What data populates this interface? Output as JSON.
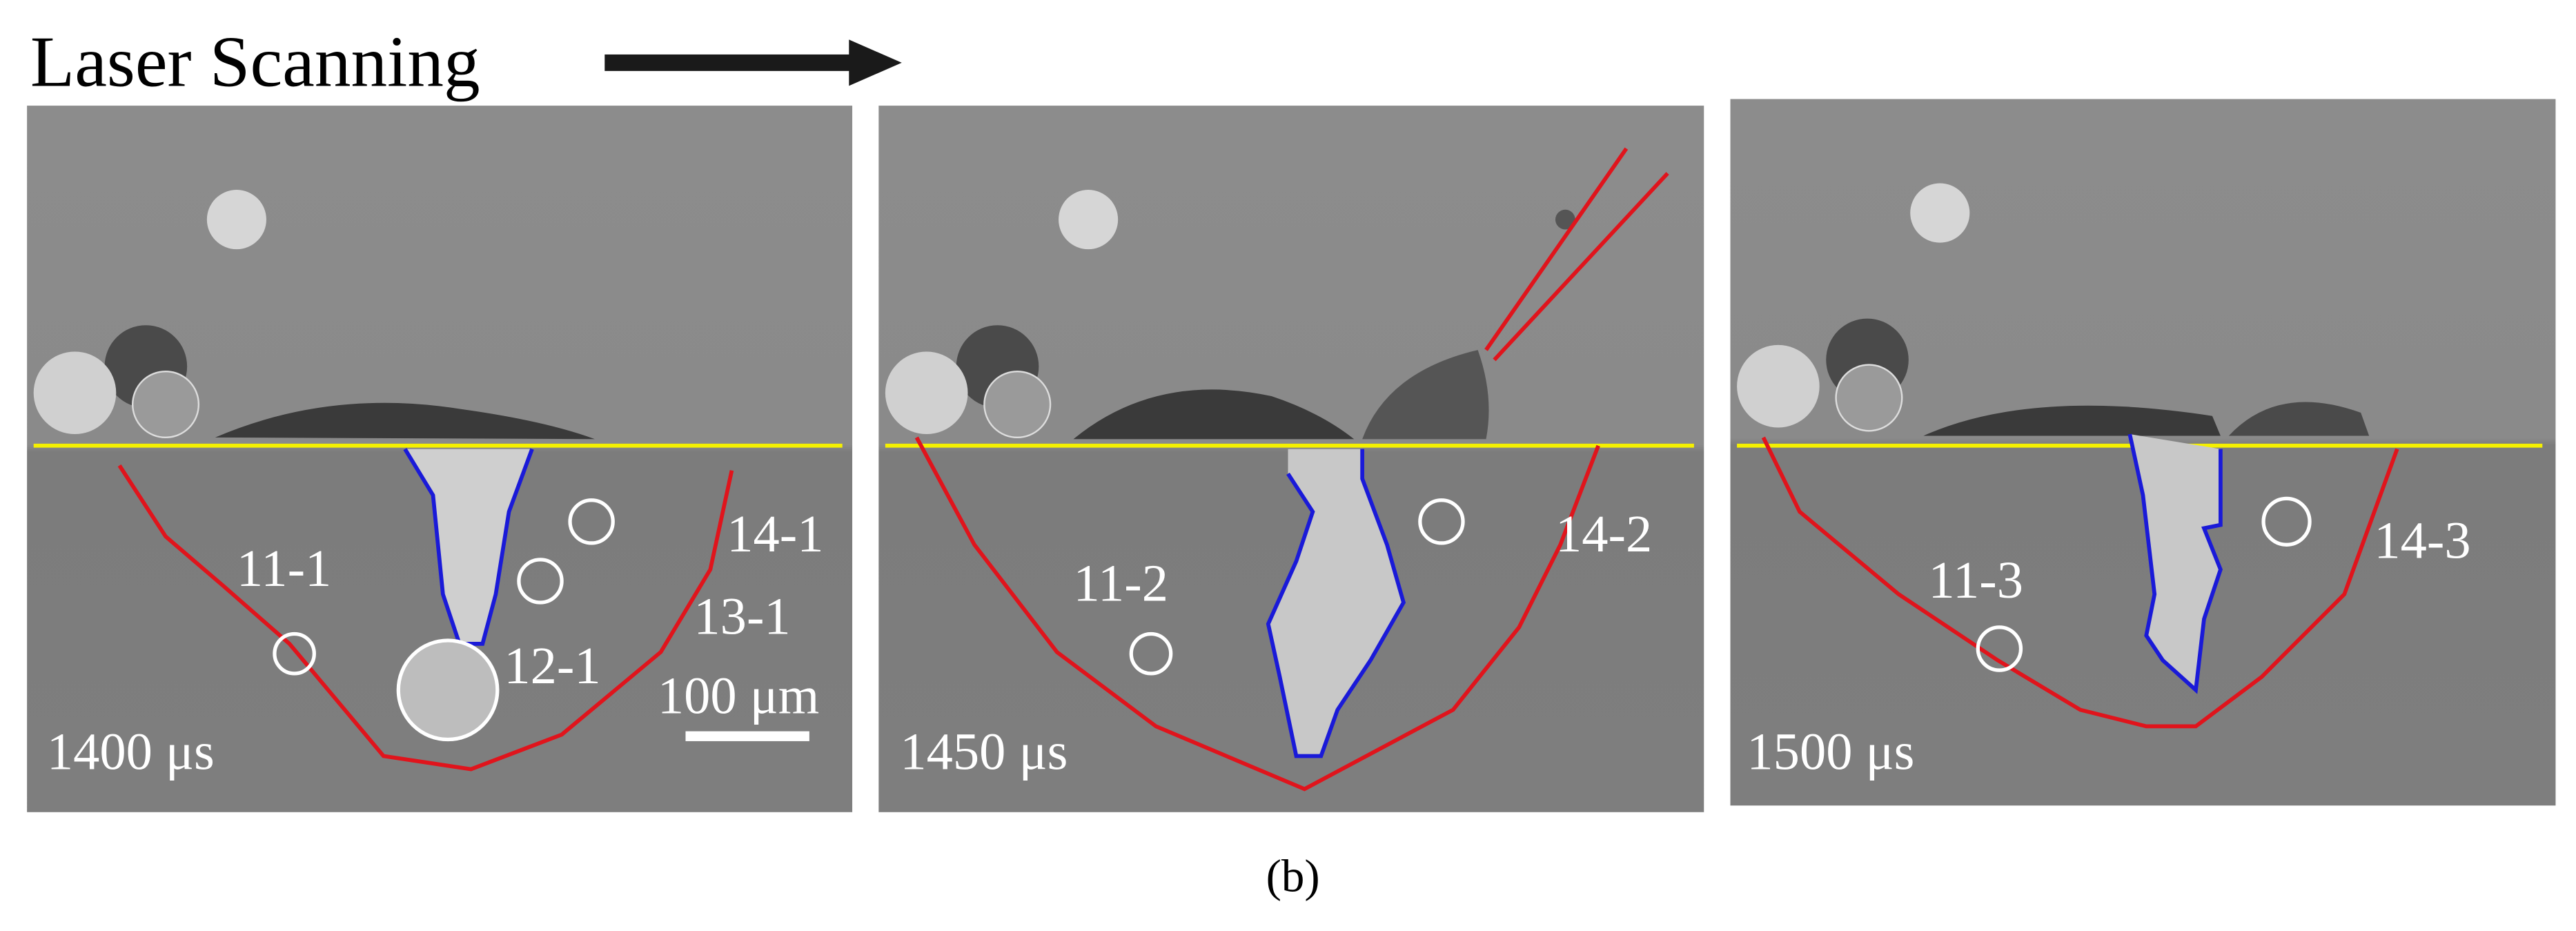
{
  "header": {
    "title": "Laser Scanning"
  },
  "panels": [
    {
      "time": "1400 μs",
      "labels": [
        "11-1",
        "12-1",
        "13-1",
        "14-1"
      ],
      "scale_bar": "100 μm"
    },
    {
      "time": "1450 μs",
      "labels": [
        "11-2",
        "14-2"
      ]
    },
    {
      "time": "1500 μs",
      "labels": [
        "11-3",
        "14-3"
      ]
    }
  ],
  "caption": "(b)"
}
